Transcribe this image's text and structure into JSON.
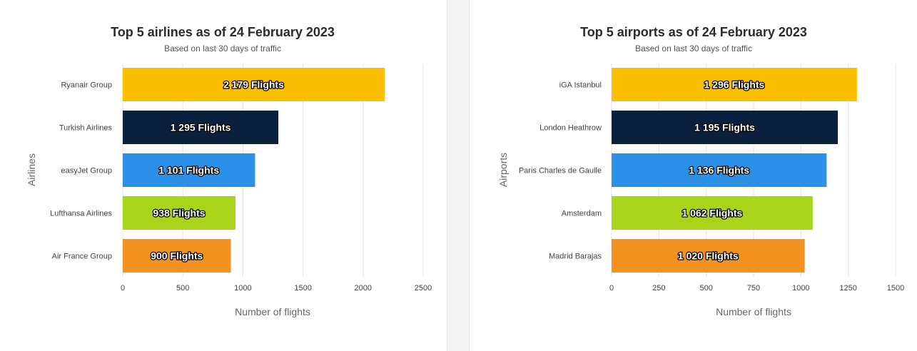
{
  "chart_data": [
    {
      "type": "bar",
      "orientation": "horizontal",
      "title": "Top 5 airlines as of 24 February 2023",
      "subtitle": "Based on last 30 days of traffic",
      "xlabel": "Number of flights",
      "ylabel": "Airlines",
      "categories": [
        "Ryanair Group",
        "Turkish Airlines",
        "easyJet Group",
        "Lufthansa Airlines",
        "Air France Group"
      ],
      "values": [
        2179,
        1295,
        1101,
        938,
        900
      ],
      "data_labels": [
        "2 179 Flights",
        "1 295 Flights",
        "1 101 Flights",
        "938 Flights",
        "900 Flights"
      ],
      "colors": [
        "#fcbf00",
        "#0b1f3f",
        "#2b90e8",
        "#a8d41a",
        "#f39220"
      ],
      "xlim": [
        0,
        2500
      ],
      "xticks": [
        0,
        500,
        1000,
        1500,
        2000,
        2500
      ],
      "grid": true,
      "legend": "none"
    },
    {
      "type": "bar",
      "orientation": "horizontal",
      "title": "Top 5 airports as of 24 February 2023",
      "subtitle": "Based on last 30 days of traffic",
      "xlabel": "Number of flights",
      "ylabel": "Airports",
      "categories": [
        "iGA Istanbul",
        "London Heathrow",
        "Paris Charles de Gaulle",
        "Amsterdam",
        "Madrid Barajas"
      ],
      "values": [
        1296,
        1195,
        1136,
        1062,
        1020
      ],
      "data_labels": [
        "1 296 Flights",
        "1 195 Flights",
        "1 136 Flights",
        "1 062 Flights",
        "1 020 Flights"
      ],
      "colors": [
        "#fcbf00",
        "#0b1f3f",
        "#2b90e8",
        "#a8d41a",
        "#f39220"
      ],
      "xlim": [
        0,
        1500
      ],
      "xticks": [
        0,
        250,
        500,
        750,
        1000,
        1250,
        1500
      ],
      "grid": true,
      "legend": "none"
    }
  ]
}
